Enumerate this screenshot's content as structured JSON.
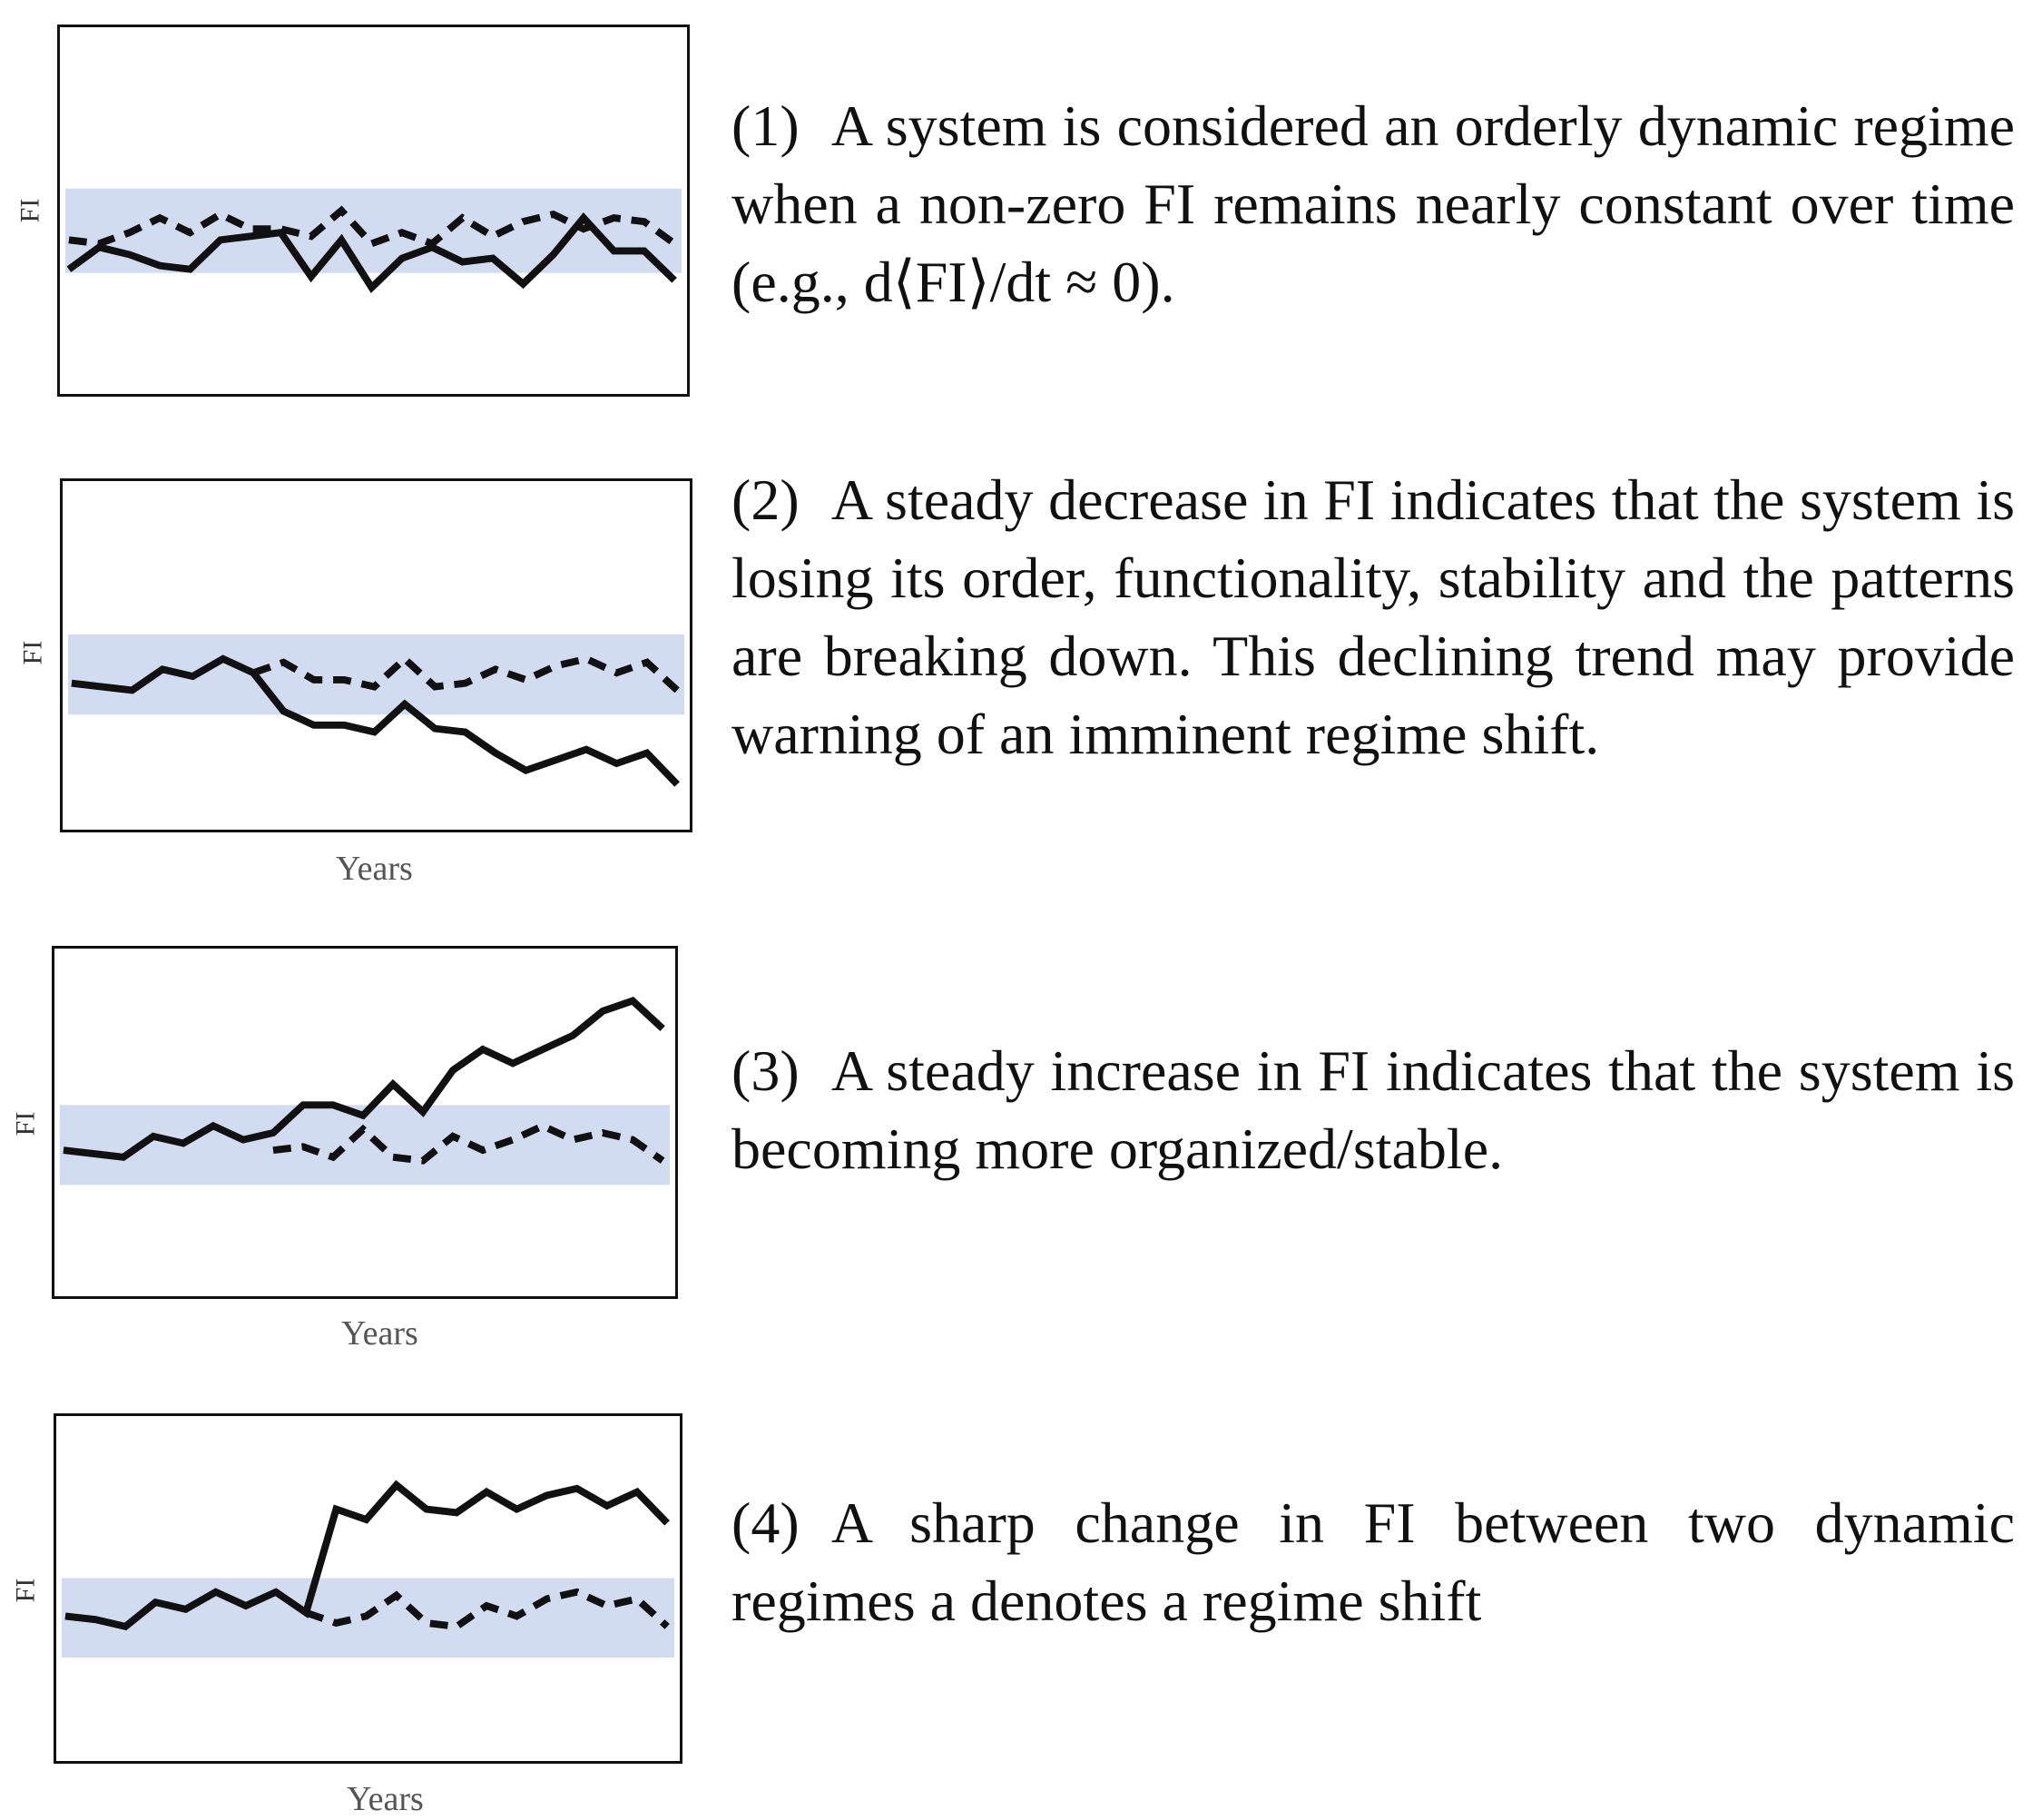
{
  "colors": {
    "band": "#d2dcf1",
    "line": "#111111",
    "frame": "#111111"
  },
  "panels": [
    {
      "number": "(1)",
      "text": "A system is considered an orderly dynamic regime when a non-zero FI remains nearly constant over time (e.g., d⟨FI⟩/dt ≈ 0).",
      "ylabel": "FI",
      "xlabel": "",
      "chart_data": {
        "type": "line",
        "ylabel": "FI",
        "ylim": [
          0,
          100
        ],
        "band": [
          33,
          56
        ],
        "series": [
          {
            "style": "solid",
            "x": [
              0,
              1,
              2,
              3,
              4,
              5,
              6,
              7,
              8,
              9,
              10,
              11,
              12,
              13,
              14,
              15,
              16,
              17,
              18,
              19,
              20
            ],
            "y": [
              34,
              40,
              38,
              35,
              34,
              42,
              43,
              44,
              32,
              42,
              29,
              37,
              40,
              36,
              37,
              30,
              38,
              48,
              39,
              39,
              31
            ]
          },
          {
            "style": "dashed",
            "x": [
              0,
              1,
              2,
              3,
              4,
              5,
              6,
              7,
              8,
              9,
              10,
              11,
              12,
              13,
              14,
              15,
              16,
              17,
              18,
              19,
              20
            ],
            "y": [
              42,
              41,
              44,
              48,
              44,
              49,
              45,
              45,
              43,
              50,
              41,
              44,
              41,
              48,
              43,
              47,
              49,
              45,
              48,
              47,
              41
            ]
          }
        ]
      }
    },
    {
      "number": "(2)",
      "text": "A steady decrease in FI indicates that the system is losing its order, functionality, stability and the patterns are breaking down. This declining trend may provide warning of an imminent regime shift.",
      "ylabel": "FI",
      "xlabel": "Years",
      "chart_data": {
        "type": "line",
        "ylabel": "FI",
        "xlabel": "Years",
        "ylim": [
          0,
          100
        ],
        "band": [
          33,
          56
        ],
        "series": [
          {
            "style": "solid",
            "x": [
              0,
              1,
              2,
              3,
              4,
              5,
              6,
              7,
              8,
              9,
              10,
              11,
              12,
              13,
              14,
              15,
              16,
              17,
              18,
              19,
              20
            ],
            "y": [
              42,
              41,
              40,
              46,
              44,
              49,
              45,
              34,
              30,
              30,
              28,
              36,
              29,
              28,
              22,
              17,
              20,
              23,
              19,
              22,
              13
            ]
          },
          {
            "style": "dashed",
            "x": [
              0,
              1,
              2,
              3,
              4,
              5,
              6,
              7,
              8,
              9,
              10,
              11,
              12,
              13,
              14,
              15,
              16,
              17,
              18,
              19,
              20
            ],
            "y": [
              null,
              null,
              null,
              null,
              null,
              null,
              45,
              48,
              43,
              43,
              41,
              49,
              41,
              42,
              46,
              43,
              47,
              49,
              45,
              48,
              40
            ]
          }
        ]
      }
    },
    {
      "number": "(3)",
      "text": "A steady increase in FI indicates that the system is becoming more organized/stable.",
      "ylabel": "FI",
      "xlabel": "Years",
      "chart_data": {
        "type": "line",
        "ylabel": "FI",
        "xlabel": "Years",
        "ylim": [
          0,
          100
        ],
        "band": [
          32,
          55
        ],
        "series": [
          {
            "style": "solid",
            "x": [
              0,
              1,
              2,
              3,
              4,
              5,
              6,
              7,
              8,
              9,
              10,
              11,
              12,
              13,
              14,
              15,
              16,
              17,
              18,
              19,
              20
            ],
            "y": [
              42,
              41,
              40,
              46,
              44,
              49,
              45,
              47,
              55,
              55,
              52,
              61,
              53,
              65,
              71,
              67,
              71,
              75,
              82,
              85,
              77
            ]
          },
          {
            "style": "dashed",
            "x": [
              0,
              1,
              2,
              3,
              4,
              5,
              6,
              7,
              8,
              9,
              10,
              11,
              12,
              13,
              14,
              15,
              16,
              17,
              18,
              19,
              20
            ],
            "y": [
              null,
              null,
              null,
              null,
              null,
              null,
              null,
              42,
              43,
              40,
              48,
              40,
              39,
              46,
              42,
              45,
              49,
              45,
              47,
              45,
              39
            ]
          }
        ]
      }
    },
    {
      "number": "(4)",
      "text": "A sharp change in FI between two dynamic regimes a denotes a regime shift",
      "ylabel": "FI",
      "xlabel": "Years",
      "chart_data": {
        "type": "line",
        "ylabel": "FI",
        "xlabel": "Years",
        "ylim": [
          0,
          100
        ],
        "band": [
          30,
          53
        ],
        "series": [
          {
            "style": "solid",
            "x": [
              0,
              1,
              2,
              3,
              4,
              5,
              6,
              7,
              8,
              9,
              10,
              11,
              12,
              13,
              14,
              15,
              16,
              17,
              18,
              19,
              20
            ],
            "y": [
              42,
              41,
              39,
              46,
              44,
              49,
              45,
              49,
              43,
              73,
              70,
              80,
              73,
              72,
              78,
              73,
              77,
              79,
              74,
              78,
              69
            ]
          },
          {
            "style": "dashed",
            "x": [
              0,
              1,
              2,
              3,
              4,
              5,
              6,
              7,
              8,
              9,
              10,
              11,
              12,
              13,
              14,
              15,
              16,
              17,
              18,
              19,
              20
            ],
            "y": [
              null,
              null,
              null,
              null,
              null,
              null,
              null,
              null,
              43,
              40,
              42,
              48,
              40,
              39,
              45,
              42,
              47,
              49,
              45,
              47,
              39
            ]
          }
        ]
      }
    }
  ]
}
